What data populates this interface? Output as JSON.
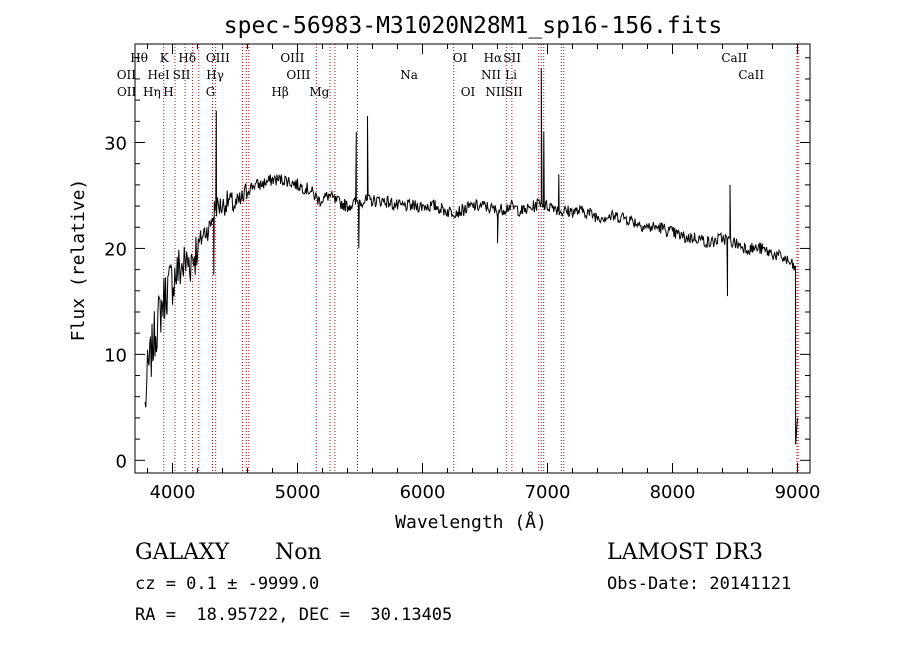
{
  "chart_data": {
    "type": "line",
    "title": "spec-56983-M31020N28M1_sp16-156.fits",
    "xlabel": "Wavelength (Å)",
    "ylabel": "Flux (relative)",
    "xlim": [
      3700,
      9100
    ],
    "ylim": [
      -1.2,
      39.3
    ],
    "xticks": [
      4000,
      5000,
      6000,
      7000,
      8000,
      9000
    ],
    "xtick_labels": [
      "4000",
      "5000",
      "6000",
      "7000",
      "8000",
      "9000"
    ],
    "yticks": [
      0,
      10,
      20,
      30
    ],
    "ytick_labels": [
      "0",
      "10",
      "20",
      "30"
    ],
    "series": [
      {
        "name": "spectrum",
        "x": [
          3780,
          3800,
          3830,
          3860,
          3900,
          3950,
          4000,
          4050,
          4100,
          4150,
          4200,
          4250,
          4300,
          4340,
          4400,
          4450,
          4500,
          4550,
          4600,
          4650,
          4700,
          4800,
          4900,
          5000,
          5100,
          5175,
          5250,
          5300,
          5400,
          5500,
          5600,
          5700,
          5800,
          5900,
          6000,
          6100,
          6200,
          6300,
          6400,
          6500,
          6600,
          6700,
          6800,
          6900,
          6950,
          6980,
          7050,
          7100,
          7200,
          7300,
          7400,
          7500,
          7600,
          7700,
          7800,
          7900,
          8000,
          8100,
          8200,
          8300,
          8400,
          8500,
          8600,
          8700,
          8800,
          8900,
          8950,
          8990
        ],
        "y": [
          5,
          8,
          10,
          12,
          14,
          16,
          17,
          18,
          18.5,
          19,
          20,
          21.5,
          22,
          24,
          24,
          24.5,
          24,
          24.5,
          25.5,
          26,
          26,
          26.5,
          26.5,
          26,
          25.5,
          24.5,
          25,
          24.5,
          24,
          24.5,
          24.5,
          24.5,
          24,
          24,
          24,
          24,
          23.5,
          23.5,
          24,
          24,
          23.5,
          24,
          23.5,
          24,
          24.5,
          24,
          24,
          23.5,
          23.5,
          23.5,
          23,
          23,
          23,
          22.5,
          22,
          22,
          21.5,
          21,
          21,
          20.5,
          21,
          20.5,
          20,
          20,
          19.5,
          19,
          18.5,
          18
        ]
      }
    ],
    "line_labels": [
      {
        "name": "Hθ",
        "wavelength": 3797
      },
      {
        "name": "K",
        "wavelength": 3934
      },
      {
        "name": "Hδ",
        "wavelength": 4102
      },
      {
        "name": "OIII",
        "wavelength": 4363
      },
      {
        "name": "OIII",
        "wavelength": 4959
      },
      {
        "name": "OI",
        "wavelength": 6300
      },
      {
        "name": "Hα",
        "wavelength": 6563
      },
      {
        "name": "SII",
        "wavelength": 6717
      },
      {
        "name": "CaII",
        "wavelength": 8542
      },
      {
        "name": "OII",
        "wavelength": 3727
      },
      {
        "name": "HeI",
        "wavelength": 3889
      },
      {
        "name": "SII",
        "wavelength": 4072
      },
      {
        "name": "Hγ",
        "wavelength": 4341
      },
      {
        "name": "OIII",
        "wavelength": 5007
      },
      {
        "name": "Na",
        "wavelength": 5893
      },
      {
        "name": "NII",
        "wavelength": 6548
      },
      {
        "name": "Li",
        "wavelength": 6708
      },
      {
        "name": "CaII",
        "wavelength": 8662
      },
      {
        "name": "OII",
        "wavelength": 3729
      },
      {
        "name": "Hη",
        "wavelength": 3835
      },
      {
        "name": "H",
        "wavelength": 3968
      },
      {
        "name": "G",
        "wavelength": 4304
      },
      {
        "name": "Hβ",
        "wavelength": 4861
      },
      {
        "name": "Mg",
        "wavelength": 5175
      },
      {
        "name": "OI",
        "wavelength": 6364
      },
      {
        "name": "NII",
        "wavelength": 6583
      },
      {
        "name": "SII",
        "wavelength": 6731
      }
    ],
    "marker_lines": [
      3930,
      4020,
      4100,
      4160,
      4210,
      4320,
      4345,
      4560,
      4590,
      4610,
      5150,
      5260,
      5300,
      5480,
      6250,
      6670,
      6715,
      6930,
      6950,
      6970,
      7110,
      7130,
      8995,
      9005
    ]
  },
  "info": {
    "class": "GALAXY",
    "subclass": "Non",
    "survey": "LAMOST DR3",
    "cz": "cz = 0.1 ± -9999.0",
    "obs_date": "Obs-Date: 20141121",
    "coords": "RA =  18.95722, DEC =  30.13405"
  },
  "colors": {
    "spectrum": "#000000",
    "marker": "#a01818",
    "axes": "#000000"
  }
}
